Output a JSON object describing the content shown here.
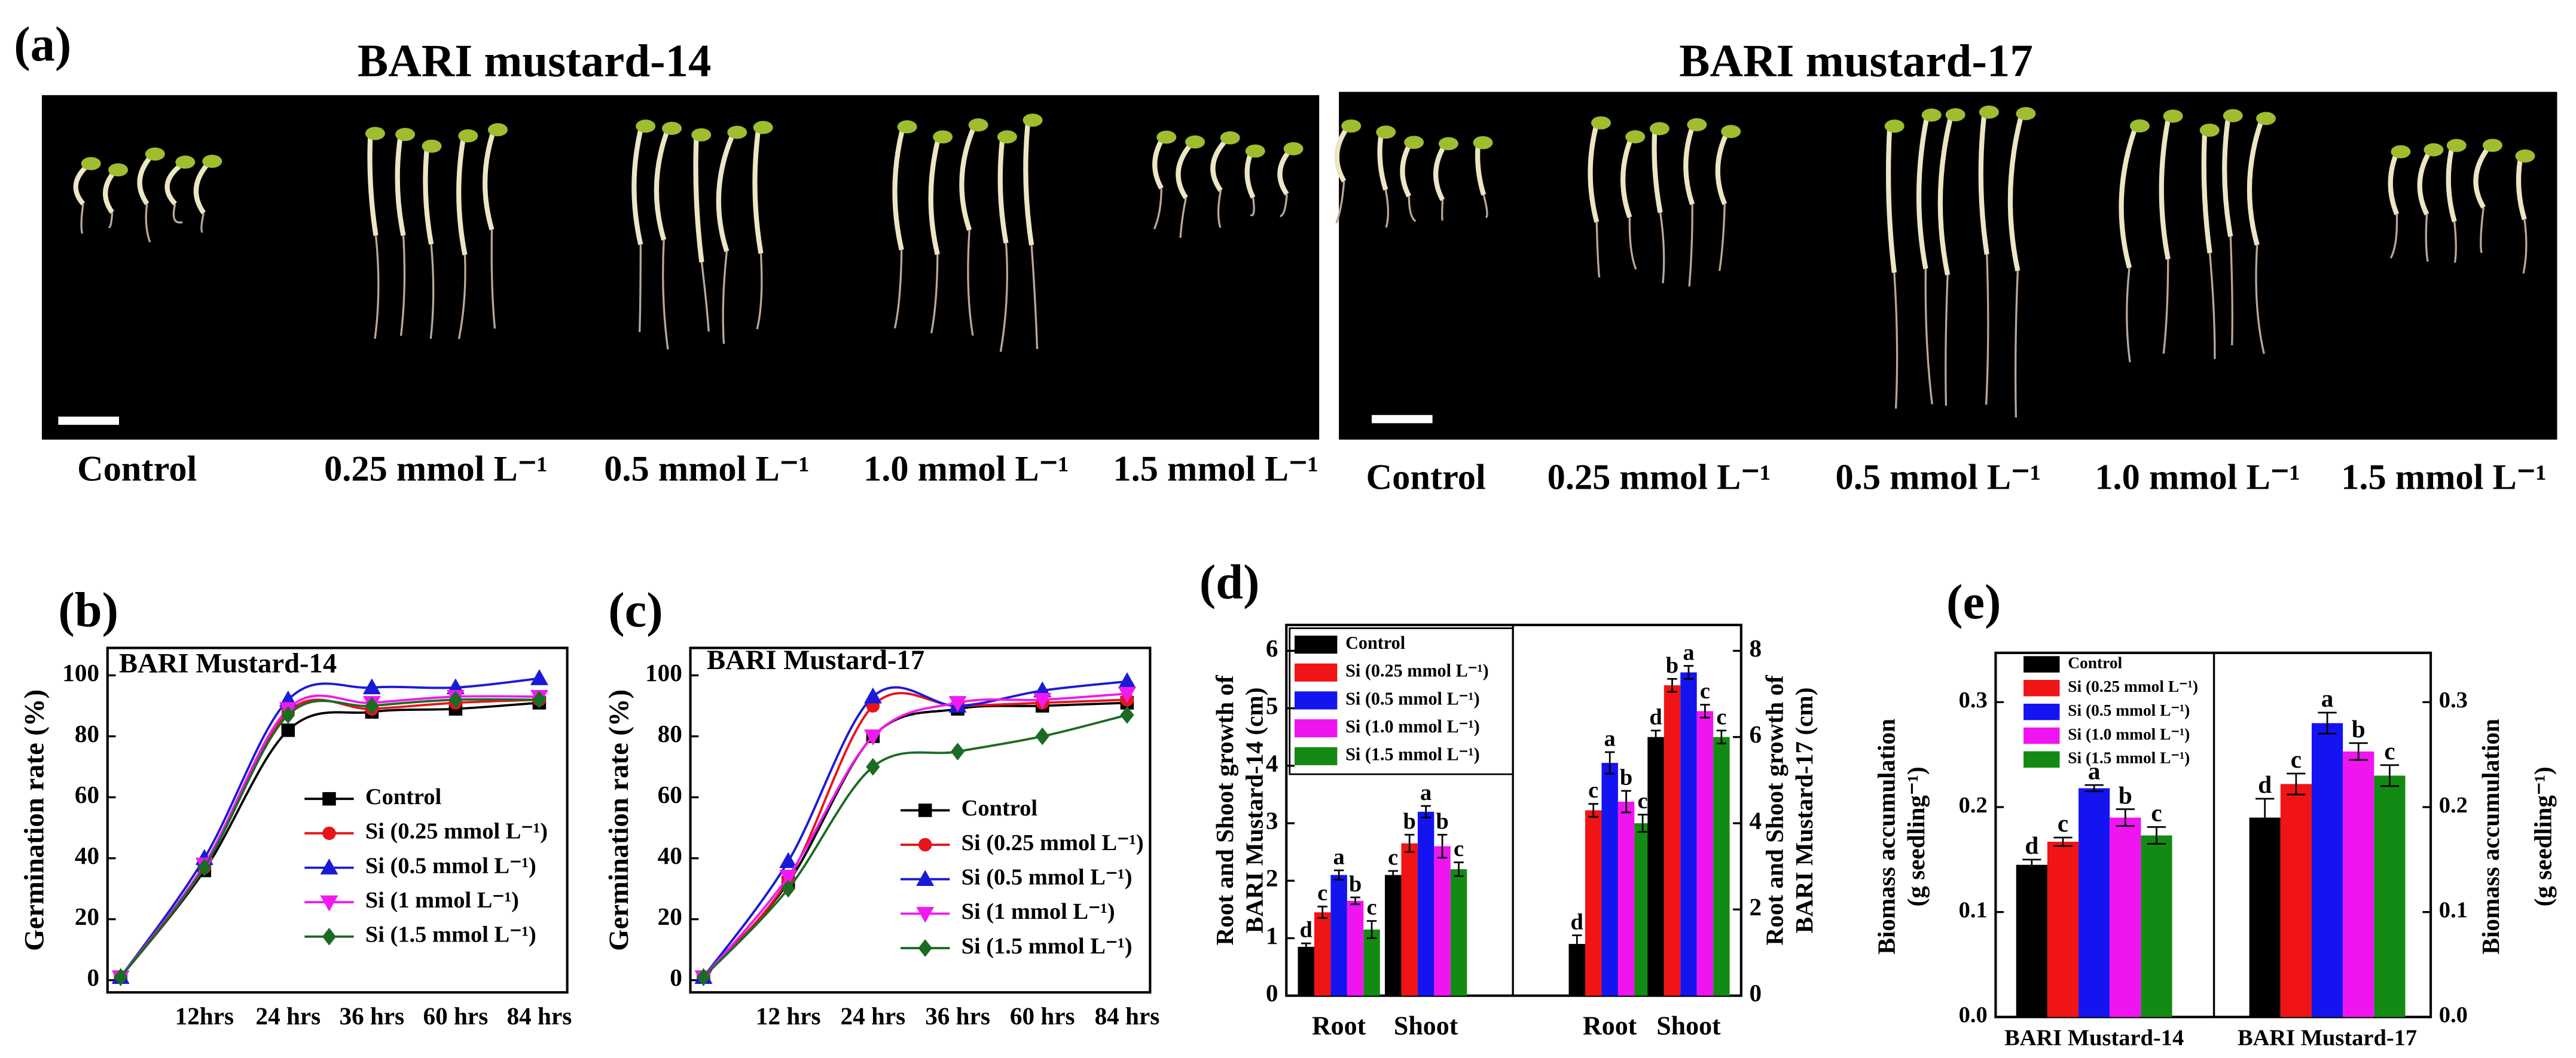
{
  "panel_a": {
    "label": "(a)",
    "groups": [
      {
        "title": "BARI mustard-14",
        "treatments": [
          "Control",
          "0.25 mmol L⁻¹",
          "0.5 mmol L⁻¹",
          "1.0 mmol L⁻¹",
          "1.5 mmol L⁻¹"
        ]
      },
      {
        "title": "BARI mustard-17",
        "treatments": [
          "Control",
          "0.25 mmol L⁻¹",
          "0.5 mmol L⁻¹",
          "1.0 mmol L⁻¹",
          "1.5 mmol L⁻¹"
        ]
      }
    ]
  },
  "chart_data": [
    {
      "type": "line",
      "panel": "(b)",
      "title": "BARI Mustard-14",
      "ylabel": "Germination rate (%)",
      "categories": [
        null,
        "12hrs",
        "24 hrs",
        "36 hrs",
        "60 hrs",
        "84 hrs"
      ],
      "ylim": [
        -4,
        109
      ],
      "yticks": [
        0,
        20,
        40,
        60,
        80,
        100
      ],
      "series": [
        {
          "name": "Control",
          "color": "#000000",
          "marker": "square",
          "values": [
            1,
            36,
            82,
            88,
            89,
            91
          ]
        },
        {
          "name": "Si (0.25 mmol L⁻¹)",
          "color": "#e8141b",
          "marker": "circle",
          "values": [
            1,
            37,
            88,
            89,
            91,
            92
          ]
        },
        {
          "name": "Si (0.5 mmol L⁻¹)",
          "color": "#1a1ad6",
          "marker": "triangle-up",
          "values": [
            1,
            40,
            92,
            96,
            96,
            99
          ]
        },
        {
          "name": "Si (1 mmol L⁻¹)",
          "color": "#f01af0",
          "marker": "triangle-down",
          "values": [
            1,
            38,
            89,
            91,
            93,
            93
          ]
        },
        {
          "name": "Si (1.5 mmol L⁻¹)",
          "color": "#1c6b24",
          "marker": "diamond",
          "values": [
            1,
            37,
            87,
            90,
            92,
            92
          ]
        }
      ]
    },
    {
      "type": "line",
      "panel": "(c)",
      "title": "BARI Mustard-17",
      "ylabel": "Germination rate (%)",
      "categories": [
        null,
        "12 hrs",
        "24 hrs",
        "36 hrs",
        "60 hrs",
        "84 hrs"
      ],
      "ylim": [
        -4,
        109
      ],
      "yticks": [
        0,
        20,
        40,
        60,
        80,
        100
      ],
      "series": [
        {
          "name": "Control",
          "color": "#000000",
          "marker": "square",
          "values": [
            1,
            32,
            80,
            89,
            90,
            91
          ]
        },
        {
          "name": "Si (0.25 mmol L⁻¹)",
          "color": "#e8141b",
          "marker": "circle",
          "values": [
            1,
            33,
            90,
            90,
            91,
            92
          ]
        },
        {
          "name": "Si (0.5 mmol L⁻¹)",
          "color": "#1a1ad6",
          "marker": "triangle-up",
          "values": [
            1,
            39,
            93,
            90,
            95,
            98
          ]
        },
        {
          "name": "Si (1 mmol L⁻¹)",
          "color": "#f01af0",
          "marker": "triangle-down",
          "values": [
            1,
            34,
            80,
            91,
            92,
            94
          ]
        },
        {
          "name": "Si (1.5 mmol L⁻¹)",
          "color": "#1c6b24",
          "marker": "diamond",
          "values": [
            1,
            30,
            70,
            75,
            80,
            87
          ]
        }
      ]
    },
    {
      "type": "bar",
      "panel": "(d)",
      "ylabel": [
        "Root and Shoot growth of",
        "BARI Mustard-14  (cm)"
      ],
      "y2label": [
        "Root and Shoot growth of",
        "BARI Mustard-17  (cm)"
      ],
      "ylim": [
        0,
        6.45
      ],
      "yticks": [
        0,
        1,
        2,
        3,
        4,
        5,
        6
      ],
      "y2lim": [
        0,
        8.6
      ],
      "y2ticks": [
        0,
        2,
        4,
        6,
        8
      ],
      "legend": [
        {
          "name": "Control",
          "color": "#000000"
        },
        {
          "name": "Si (0.25 mmol L⁻¹)",
          "color": "#f01414"
        },
        {
          "name": "Si (0.5 mmol L⁻¹)",
          "color": "#1414f0"
        },
        {
          "name": "Si (1.0 mmol L⁻¹)",
          "color": "#f014f0"
        },
        {
          "name": "Si (1.5 mmol L⁻¹)",
          "color": "#138a13"
        }
      ],
      "groups": [
        {
          "axis": "y",
          "categories": [
            "Root",
            "Shoot"
          ],
          "series": [
            {
              "values": [
                0.85,
                2.1
              ],
              "errors": [
                0.06,
                0.07
              ],
              "letters": [
                "d",
                "c"
              ]
            },
            {
              "values": [
                1.45,
                2.65
              ],
              "errors": [
                0.1,
                0.15
              ],
              "letters": [
                "c",
                "b"
              ]
            },
            {
              "values": [
                2.1,
                3.2
              ],
              "errors": [
                0.08,
                0.1
              ],
              "letters": [
                "a",
                "a"
              ]
            },
            {
              "values": [
                1.65,
                2.6
              ],
              "errors": [
                0.06,
                0.2
              ],
              "letters": [
                "b",
                "b"
              ]
            },
            {
              "values": [
                1.15,
                2.2
              ],
              "errors": [
                0.15,
                0.12
              ],
              "letters": [
                "c",
                "c"
              ]
            }
          ]
        },
        {
          "axis": "y2",
          "categories": [
            "Root",
            "Shoot"
          ],
          "series": [
            {
              "values": [
                1.2,
                6.0
              ],
              "errors": [
                0.2,
                0.15
              ],
              "letters": [
                "d",
                "d"
              ]
            },
            {
              "values": [
                4.3,
                7.2
              ],
              "errors": [
                0.15,
                0.15
              ],
              "letters": [
                "c",
                "b"
              ]
            },
            {
              "values": [
                5.4,
                7.5
              ],
              "errors": [
                0.25,
                0.15
              ],
              "letters": [
                "a",
                "a"
              ]
            },
            {
              "values": [
                4.5,
                6.6
              ],
              "errors": [
                0.25,
                0.15
              ],
              "letters": [
                "b",
                "c"
              ]
            },
            {
              "values": [
                4.0,
                6.0
              ],
              "errors": [
                0.2,
                0.15
              ],
              "letters": [
                "c",
                "c"
              ]
            }
          ]
        }
      ]
    },
    {
      "type": "bar",
      "panel": "(e)",
      "ylabel": [
        "Biomass accumulation",
        "(g seedling⁻¹)"
      ],
      "y2label": [
        "Biomass accumulation",
        "(g seedling⁻¹)"
      ],
      "ylim": [
        0,
        0.347
      ],
      "yticks": [
        {
          "value": 0,
          "label": "0.0"
        },
        0.1,
        0.2,
        0.3
      ],
      "y2lim": [
        0,
        0.347
      ],
      "y2ticks": [
        {
          "value": 0,
          "label": "0.0"
        },
        0.1,
        0.2,
        0.3
      ],
      "legend": [
        {
          "name": "Control",
          "color": "#000000"
        },
        {
          "name": "Si (0.25 mmol L⁻¹)",
          "color": "#f01414"
        },
        {
          "name": "Si (0.5 mmol L⁻¹)",
          "color": "#1414f0"
        },
        {
          "name": "Si (1.0 mmol L⁻¹)",
          "color": "#f014f0"
        },
        {
          "name": "Si (1.5 mmol L⁻¹)",
          "color": "#138a13"
        }
      ],
      "groups": [
        {
          "axis": "y",
          "categories": [
            "BARI Mustard-14"
          ],
          "series": [
            {
              "values": [
                0.145
              ],
              "errors": [
                0.005
              ],
              "letters": [
                "d"
              ]
            },
            {
              "values": [
                0.167
              ],
              "errors": [
                0.004
              ],
              "letters": [
                "c"
              ]
            },
            {
              "values": [
                0.218
              ],
              "errors": [
                0.003
              ],
              "letters": [
                "a"
              ]
            },
            {
              "values": [
                0.19
              ],
              "errors": [
                0.008
              ],
              "letters": [
                "b"
              ]
            },
            {
              "values": [
                0.173
              ],
              "errors": [
                0.008
              ],
              "letters": [
                "c"
              ]
            }
          ]
        },
        {
          "axis": "y2",
          "categories": [
            "BARI Mustard-17"
          ],
          "series": [
            {
              "values": [
                0.19
              ],
              "errors": [
                0.018
              ],
              "letters": [
                "d"
              ]
            },
            {
              "values": [
                0.222
              ],
              "errors": [
                0.01
              ],
              "letters": [
                "c"
              ]
            },
            {
              "values": [
                0.28
              ],
              "errors": [
                0.01
              ],
              "letters": [
                "a"
              ]
            },
            {
              "values": [
                0.253
              ],
              "errors": [
                0.008
              ],
              "letters": [
                "b"
              ]
            },
            {
              "values": [
                0.23
              ],
              "errors": [
                0.01
              ],
              "letters": [
                "c"
              ]
            }
          ]
        }
      ]
    }
  ]
}
